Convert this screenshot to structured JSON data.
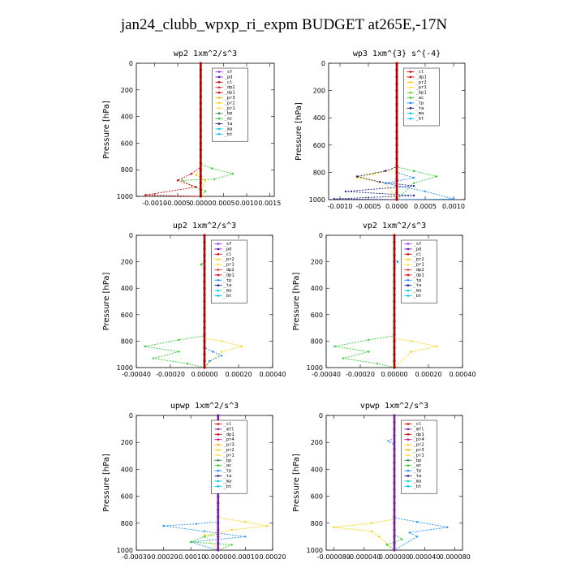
{
  "figure": {
    "title": "jan24_clubb_wpxp_ri_expm  BUDGET at265E,-17N"
  },
  "colors": {
    "sf": "#9b30ff",
    "pd": "#6a0dad",
    "cl": "#d40000",
    "dp2": "#e03030",
    "dp1": "#d40000",
    "pr3": "#ffb000",
    "pr2": "#ffd000",
    "pr1": "#ffdd40",
    "bp": "#2e8b57",
    "bp1": "#66cc33",
    "ac": "#33cc33",
    "ta": "#1a1a8c",
    "ma": "#00ced1",
    "bt": "#00bfff",
    "tp": "#1e90ff",
    "mfl": "#7b1fa2",
    "pr4": "#c71585",
    "profile": "#b00000",
    "profile_alt": "#7b1fa2"
  },
  "chart_data": [
    {
      "type": "line",
      "title": "wp2  1xm^2/s^3",
      "ylabel": "Pressure [hPa]",
      "ylim": [
        1000,
        0
      ],
      "xlim": [
        -0.0014,
        0.0016
      ],
      "x_ticks": [
        "-0.0010",
        "-0.0005",
        "0.0000",
        "0.0005",
        "0.0010",
        "0.0015"
      ],
      "x_tick_values": [
        -0.001,
        -0.0005,
        0,
        0.0005,
        0.001,
        0.0015
      ],
      "y_ticks": [
        "0",
        "200",
        "400",
        "600",
        "800",
        "1000"
      ],
      "legend": [
        "_sf",
        "_pd",
        "_cl",
        "_dp2",
        "_dp1",
        "_pr3",
        "_pr2",
        "_pr1",
        "_bp",
        "_ac",
        "_ta",
        "_ma",
        "_bt"
      ],
      "legend_keys": [
        "sf",
        "pd",
        "cl",
        "dp2",
        "dp1",
        "pr3",
        "pr2",
        "pr1",
        "bp",
        "ac",
        "ta",
        "ma",
        "bt"
      ],
      "legend_placement": "top-right",
      "series": [
        {
          "key": "ac",
          "points": [
            [
              0,
              0
            ],
            [
              0,
              760
            ],
            [
              0.00025,
              790
            ],
            [
              0.0007,
              830
            ],
            [
              0.0003,
              870
            ],
            [
              -0.0004,
              880
            ],
            [
              -0.0002,
              920
            ],
            [
              0.0001,
              960
            ],
            [
              0,
              1000
            ]
          ]
        },
        {
          "key": "dp1",
          "points": [
            [
              0,
              0
            ],
            [
              0,
              780
            ],
            [
              -0.0002,
              830
            ],
            [
              -0.0005,
              880
            ],
            [
              -0.0001,
              930
            ],
            [
              -0.0012,
              990
            ],
            [
              0,
              1000
            ]
          ]
        },
        {
          "key": "pr2",
          "points": [
            [
              0,
              0
            ],
            [
              0,
              800
            ],
            [
              -0.0001,
              840
            ],
            [
              0.0001,
              880
            ],
            [
              0,
              1000
            ]
          ]
        },
        {
          "key": "profile",
          "points": [
            [
              0,
              0
            ],
            [
              0,
              1000
            ]
          ]
        }
      ]
    },
    {
      "type": "line",
      "title": "wp3  1xm^{3} s^{-4}",
      "ylabel": "Pressure [hPa]",
      "ylim": [
        1000,
        0
      ],
      "xlim": [
        -0.0012,
        0.0012
      ],
      "x_ticks": [
        "-0.0010",
        "-0.0005",
        "0.0000",
        "0.0005",
        "0.0010"
      ],
      "x_tick_values": [
        -0.001,
        -0.0005,
        0,
        0.0005,
        0.001
      ],
      "y_ticks": [
        "0",
        "200",
        "400",
        "600",
        "800",
        "1000"
      ],
      "legend": [
        "_cl",
        "_dp1",
        "_pr2",
        "_pr1",
        "_bp1",
        "_ac",
        "_tp",
        "_ta",
        "_ma",
        "_bt"
      ],
      "legend_keys": [
        "cl",
        "dp1",
        "pr2",
        "pr1",
        "bp1",
        "ac",
        "tp",
        "ta",
        "ma",
        "bt"
      ],
      "legend_placement": "top-right",
      "series": [
        {
          "key": "ac",
          "points": [
            [
              0,
              0
            ],
            [
              0,
              760
            ],
            [
              0.0003,
              790
            ],
            [
              0.0007,
              830
            ],
            [
              0.0003,
              880
            ],
            [
              0,
              1000
            ]
          ]
        },
        {
          "key": "pr2",
          "points": [
            [
              0,
              0
            ],
            [
              0,
              780
            ],
            [
              -0.0004,
              810
            ],
            [
              -0.0007,
              840
            ],
            [
              -0.0002,
              880
            ],
            [
              0,
              1000
            ]
          ]
        },
        {
          "key": "ta",
          "points": [
            [
              0,
              0
            ],
            [
              0,
              760
            ],
            [
              -0.0002,
              790
            ],
            [
              -0.0007,
              830
            ],
            [
              -0.0003,
              870
            ],
            [
              0.0003,
              900
            ],
            [
              -0.0009,
              940
            ],
            [
              0.0003,
              970
            ],
            [
              -0.0011,
              995
            ],
            [
              0,
              1000
            ]
          ]
        },
        {
          "key": "tp",
          "points": [
            [
              0,
              0
            ],
            [
              0,
              800
            ],
            [
              0.0003,
              840
            ],
            [
              -0.0002,
              880
            ],
            [
              0.0005,
              940
            ],
            [
              0.001,
              995
            ],
            [
              0,
              1000
            ]
          ]
        },
        {
          "key": "profile",
          "points": [
            [
              0,
              0
            ],
            [
              0,
              1000
            ]
          ]
        }
      ]
    },
    {
      "type": "line",
      "title": "up2  1xm^2/s^3",
      "ylabel": "Pressure [hPa]",
      "ylim": [
        1000,
        0
      ],
      "xlim": [
        -0.0004,
        0.0004
      ],
      "x_ticks": [
        "-0.00040",
        "-0.00020",
        "0.00000",
        "0.00020",
        "0.00040"
      ],
      "x_tick_values": [
        -0.0004,
        -0.0002,
        0,
        0.0002,
        0.0004
      ],
      "y_ticks": [
        "0",
        "200",
        "400",
        "600",
        "800",
        "1000"
      ],
      "legend": [
        "_sf",
        "_pd",
        "_cl",
        "_pr2",
        "_pr1",
        "_dp2",
        "_dp1",
        "_tp",
        "_ta",
        "_ma",
        "_bt"
      ],
      "legend_keys": [
        "sf",
        "pd",
        "cl",
        "pr2",
        "pr1",
        "dp2",
        "dp1",
        "tp",
        "ta",
        "ma",
        "bt"
      ],
      "legend_placement": "top-right",
      "series": [
        {
          "key": "ac",
          "points": [
            [
              0,
              0
            ],
            [
              0,
              200
            ],
            [
              -2e-05,
              220
            ],
            [
              0,
              240
            ],
            [
              0,
              760
            ],
            [
              -0.00015,
              790
            ],
            [
              -0.00035,
              840
            ],
            [
              -0.00015,
              880
            ],
            [
              -0.0003,
              930
            ],
            [
              -0.0001,
              970
            ],
            [
              0,
              1000
            ]
          ]
        },
        {
          "key": "pr2",
          "points": [
            [
              0,
              0
            ],
            [
              0,
              780
            ],
            [
              0.0001,
              800
            ],
            [
              0.00022,
              840
            ],
            [
              0.0001,
              880
            ],
            [
              0,
              1000
            ]
          ]
        },
        {
          "key": "tp",
          "points": [
            [
              0,
              0
            ],
            [
              0,
              850
            ],
            [
              5e-05,
              880
            ],
            [
              0.0001,
              910
            ],
            [
              3e-05,
              950
            ],
            [
              0,
              1000
            ]
          ]
        },
        {
          "key": "profile",
          "points": [
            [
              0,
              0
            ],
            [
              0,
              1000
            ]
          ]
        }
      ]
    },
    {
      "type": "line",
      "title": "vp2  1xm^2/s^3",
      "ylabel": "Pressure [hPa]",
      "ylim": [
        1000,
        0
      ],
      "xlim": [
        -0.0004,
        0.0004
      ],
      "x_ticks": [
        "-0.00040",
        "-0.00020",
        "0.00000",
        "0.00020",
        "0.00040"
      ],
      "x_tick_values": [
        -0.0004,
        -0.0002,
        0,
        0.0002,
        0.0004
      ],
      "y_ticks": [
        "0",
        "200",
        "400",
        "600",
        "800",
        "1000"
      ],
      "legend": [
        "_sf",
        "_pd",
        "_cl",
        "_pr2",
        "_pr1",
        "_dp2",
        "_dp1",
        "_tp",
        "_ta",
        "_ma",
        "_bt"
      ],
      "legend_keys": [
        "sf",
        "pd",
        "cl",
        "pr2",
        "pr1",
        "dp2",
        "dp1",
        "tp",
        "ta",
        "ma",
        "bt"
      ],
      "legend_placement": "top-right",
      "series": [
        {
          "key": "tp",
          "points": [
            [
              0,
              0
            ],
            [
              0,
              180
            ],
            [
              2e-05,
              200
            ],
            [
              0,
              230
            ],
            [
              0,
              1000
            ]
          ]
        },
        {
          "key": "ac",
          "points": [
            [
              0,
              0
            ],
            [
              0,
              760
            ],
            [
              -0.00015,
              790
            ],
            [
              -0.00035,
              840
            ],
            [
              -0.00015,
              880
            ],
            [
              -0.0003,
              930
            ],
            [
              -0.0001,
              970
            ],
            [
              0,
              1000
            ]
          ]
        },
        {
          "key": "pr2",
          "points": [
            [
              0,
              0
            ],
            [
              0,
              780
            ],
            [
              0.0001,
              800
            ],
            [
              0.00025,
              840
            ],
            [
              0.0001,
              880
            ],
            [
              0,
              1000
            ]
          ]
        },
        {
          "key": "profile",
          "points": [
            [
              0,
              0
            ],
            [
              0,
              1000
            ]
          ]
        }
      ]
    },
    {
      "type": "line",
      "title": "upwp  1xm^2/s^3",
      "ylabel": "Pressure [hPa]",
      "ylim": [
        1000,
        0
      ],
      "xlim": [
        -0.0003,
        0.0002
      ],
      "x_ticks": [
        "-0.00030",
        "-0.00020",
        "-0.00010",
        "0.00000",
        "0.00010",
        "0.00020"
      ],
      "x_tick_values": [
        -0.0003,
        -0.0002,
        -0.0001,
        0,
        0.0001,
        0.0002
      ],
      "y_ticks": [
        "0",
        "200",
        "400",
        "600",
        "800",
        "1000"
      ],
      "legend": [
        "_cl",
        "_mfl",
        "_dp1",
        "_pr4",
        "_pr3",
        "_pr2",
        "_pr1",
        "_bp",
        "_ac",
        "_tp",
        "_ta",
        "_ma",
        "_bt"
      ],
      "legend_keys": [
        "cl",
        "mfl",
        "dp1",
        "pr4",
        "pr3",
        "pr2",
        "pr1",
        "bp",
        "ac",
        "tp",
        "ta",
        "ma",
        "bt"
      ],
      "legend_placement": "top-right",
      "series": [
        {
          "key": "pr2",
          "points": [
            [
              0,
              0
            ],
            [
              0,
              760
            ],
            [
              0.0001,
              790
            ],
            [
              0.00018,
              820
            ],
            [
              5e-05,
              850
            ],
            [
              -5e-05,
              890
            ],
            [
              0,
              1000
            ]
          ]
        },
        {
          "key": "tp",
          "points": [
            [
              0,
              0
            ],
            [
              0,
              790
            ],
            [
              -8e-05,
              805
            ],
            [
              -0.0002,
              820
            ],
            [
              -5e-05,
              860
            ],
            [
              0.0001,
              900
            ],
            [
              -0.0001,
              940
            ],
            [
              0,
              1000
            ]
          ]
        },
        {
          "key": "ac",
          "points": [
            [
              0,
              0
            ],
            [
              0,
              880
            ],
            [
              -5e-05,
              900
            ],
            [
              -0.0001,
              940
            ],
            [
              5e-05,
              960
            ],
            [
              0,
              1000
            ]
          ]
        },
        {
          "key": "profile_alt",
          "points": [
            [
              0,
              0
            ],
            [
              0,
              1000
            ]
          ]
        }
      ]
    },
    {
      "type": "line",
      "title": "vpwp  1xm^2/s^3",
      "ylabel": "Pressure [hPa]",
      "ylim": [
        1000,
        0
      ],
      "xlim": [
        -9e-05,
        9e-05
      ],
      "x_ticks": [
        "-0.000080",
        "-0.000040",
        "0.000000",
        "0.000040",
        "0.000080"
      ],
      "x_tick_values": [
        -8e-05,
        -4e-05,
        0,
        4e-05,
        8e-05
      ],
      "y_ticks": [
        "0",
        "200",
        "400",
        "600",
        "800",
        "1000"
      ],
      "legend": [
        "_cl",
        "_mfl",
        "_dp1",
        "_pr4",
        "_pr2",
        "_pr3",
        "_pr1",
        "_bp",
        "_ac",
        "_tp",
        "_ta",
        "_ma",
        "_bt"
      ],
      "legend_keys": [
        "cl",
        "mfl",
        "dp1",
        "pr4",
        "pr2",
        "pr3",
        "pr1",
        "bp",
        "ac",
        "tp",
        "ta",
        "ma",
        "bt"
      ],
      "legend_placement": "top-right",
      "series": [
        {
          "key": "tp",
          "points": [
            [
              0,
              0
            ],
            [
              0,
              170
            ],
            [
              -8e-06,
              190
            ],
            [
              0,
              220
            ],
            [
              0,
              760
            ],
            [
              3e-05,
              790
            ],
            [
              7e-05,
              830
            ],
            [
              2e-05,
              870
            ],
            [
              3e-05,
              900
            ],
            [
              0,
              1000
            ]
          ]
        },
        {
          "key": "pr2",
          "points": [
            [
              0,
              0
            ],
            [
              0,
              770
            ],
            [
              -3e-05,
              800
            ],
            [
              -8e-05,
              830
            ],
            [
              -3e-05,
              860
            ],
            [
              -2e-05,
              900
            ],
            [
              0,
              1000
            ]
          ]
        },
        {
          "key": "ac",
          "points": [
            [
              0,
              0
            ],
            [
              0,
              880
            ],
            [
              1e-05,
              920
            ],
            [
              -1e-05,
              960
            ],
            [
              0,
              1000
            ]
          ]
        },
        {
          "key": "profile_alt",
          "points": [
            [
              0,
              0
            ],
            [
              0,
              1000
            ]
          ]
        }
      ]
    }
  ]
}
